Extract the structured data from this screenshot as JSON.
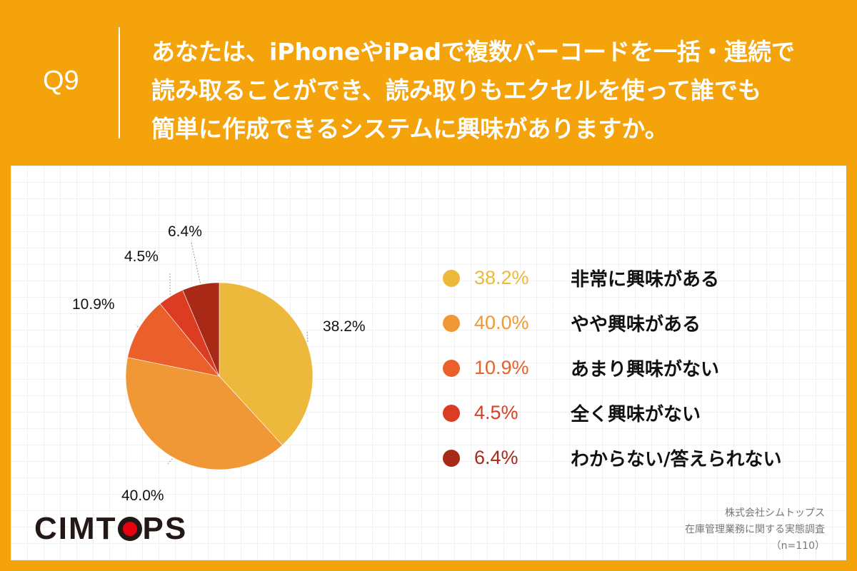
{
  "header": {
    "question_number": "Q9",
    "question_lines": [
      "あなたは、iPhoneやiPadで複数バーコードを一括・連続で",
      "読み取ることができ、読み取りもエクセルを使って誰でも",
      "簡単に作成できるシステムに興味がありますか。"
    ]
  },
  "colors": {
    "background": "#f4a30a",
    "card": "#ffffff"
  },
  "chart_data": {
    "type": "pie",
    "title": "あなたは、iPhoneやiPadで複数バーコードを一括・連続で読み取ることができ、読み取りもエクセルを使って誰でも簡単に作成できるシステムに興味がありますか。",
    "categories": [
      "非常に興味がある",
      "やや興味がある",
      "あまり興味がない",
      "全く興味がない",
      "わからない/答えられない"
    ],
    "values": [
      38.2,
      40.0,
      10.9,
      4.5,
      6.4
    ],
    "labels": [
      "38.2%",
      "40.0%",
      "10.9%",
      "4.5%",
      "6.4%"
    ],
    "colors": [
      "#edb93c",
      "#f09835",
      "#ea5f2a",
      "#dc3c22",
      "#a82a16"
    ],
    "start_angle": "12 o'clock, clockwise",
    "legend_position": "right",
    "sample_size": "n=110"
  },
  "pie_labels": [
    {
      "text": "38.2%"
    },
    {
      "text": "40.0%"
    },
    {
      "text": "10.9%"
    },
    {
      "text": "4.5%"
    },
    {
      "text": "6.4%"
    }
  ],
  "legend": [
    {
      "pct": "38.2%",
      "label": "非常に興味がある",
      "color": "#edb93c"
    },
    {
      "pct": "40.0%",
      "label": "やや興味がある",
      "color": "#f09835"
    },
    {
      "pct": "10.9%",
      "label": "あまり興味がない",
      "color": "#ea5f2a"
    },
    {
      "pct": "4.5%",
      "label": "全く興味がない",
      "color": "#dc3c22"
    },
    {
      "pct": "6.4%",
      "label": "わからない/答えられない",
      "color": "#a82a16"
    }
  ],
  "logo": {
    "before": "CIMT",
    "after": "PS"
  },
  "source": {
    "company": "株式会社シムトップス",
    "survey": "在庫管理業務に関する実態調査",
    "n": "（n=110）"
  }
}
